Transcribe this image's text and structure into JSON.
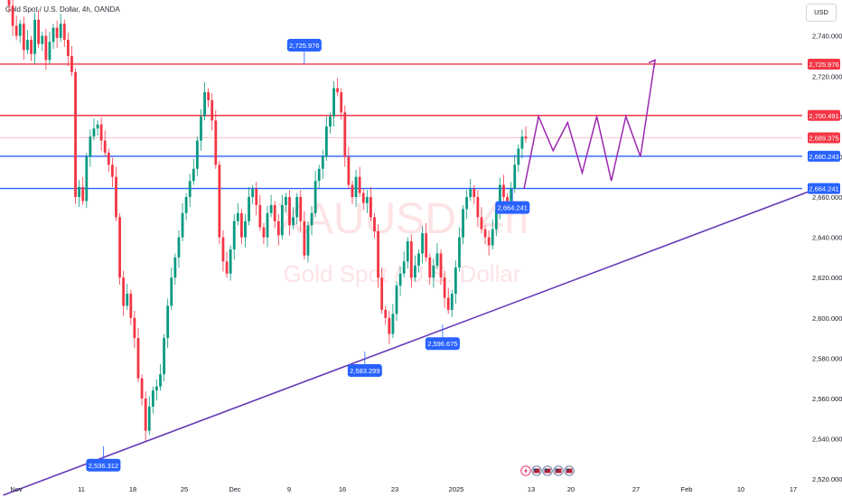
{
  "header": {
    "title": "Gold Spot / U.S. Dollar, 4h, OANDA"
  },
  "currency_button": "USD",
  "watermark": {
    "symbol": "XAUUSD, 4h",
    "name": "Gold Spot / U.S. Dollar"
  },
  "colors": {
    "red": "#f23645",
    "blue": "#2962ff",
    "purple": "#673ab7",
    "up": "#089981",
    "down": "#f23645",
    "label_blue": "#2962ff"
  },
  "events_icons": [
    "lightning-icon",
    "us-flag-icon",
    "us-flag-icon",
    "us-flag-icon",
    "us-flag-icon"
  ],
  "chart_data": {
    "type": "candlestick",
    "symbol": "XAUUSD",
    "timeframe": "4h",
    "y_axis": {
      "ticks": [
        "2,520.000",
        "2,540.000",
        "2,560.000",
        "2,580.000",
        "2,600.000",
        "2,620.000",
        "2,640.000",
        "2,660.000",
        "2,680.000",
        "2,700.000",
        "2,720.000",
        "2,740.000"
      ],
      "ylim": [
        2512,
        2756
      ]
    },
    "x_axis": {
      "ticks": [
        "Nov",
        "11",
        "18",
        "25",
        "Dec",
        "9",
        "16",
        "23",
        "2025",
        "13",
        "20",
        "27",
        "Feb",
        "10",
        "17"
      ]
    },
    "horizontal_levels": [
      {
        "value": 2725.976,
        "label": "2,725.976",
        "color": "red"
      },
      {
        "value": 2700.491,
        "label": "2,700.491",
        "color": "red"
      },
      {
        "value": 2689.375,
        "label": "2,689.375",
        "color": "red",
        "style": "faint"
      },
      {
        "value": 2680.243,
        "label": "2,680.243",
        "color": "blue"
      },
      {
        "value": 2664.241,
        "label": "2,664.241",
        "color": "blue"
      }
    ],
    "point_labels": [
      {
        "label": "2,725.976",
        "value": 2725.976,
        "date": "Dec 11"
      },
      {
        "label": "2,664.241",
        "value": 2664.241,
        "date": "Jan 10"
      },
      {
        "label": "2,583.299",
        "value": 2583.299,
        "date": "Dec 19"
      },
      {
        "label": "2,596.675",
        "value": 2596.675,
        "date": "Dec 30"
      },
      {
        "label": "2,536.312",
        "value": 2536.312,
        "date": "Nov 14"
      }
    ],
    "trendline": {
      "from": {
        "date": "Oct 30",
        "value": 2512
      },
      "to": {
        "date": "Feb 20",
        "value": 2664
      }
    },
    "projection_path": [
      2664,
      2700,
      2683,
      2697,
      2672,
      2700,
      2668,
      2700,
      2680,
      2728
    ],
    "closes": [
      2755,
      2745,
      2740,
      2746,
      2733,
      2738,
      2731,
      2748,
      2736,
      2740,
      2728,
      2737,
      2744,
      2739,
      2746,
      2738,
      2730,
      2722,
      2660,
      2665,
      2658,
      2680,
      2690,
      2694,
      2696,
      2688,
      2682,
      2676,
      2670,
      2650,
      2620,
      2606,
      2612,
      2600,
      2590,
      2570,
      2560,
      2544,
      2556,
      2564,
      2566,
      2572,
      2590,
      2606,
      2620,
      2630,
      2640,
      2652,
      2660,
      2668,
      2674,
      2688,
      2700,
      2712,
      2708,
      2698,
      2676,
      2640,
      2628,
      2622,
      2634,
      2648,
      2652,
      2640,
      2648,
      2660,
      2664,
      2656,
      2645,
      2640,
      2652,
      2656,
      2648,
      2641,
      2656,
      2660,
      2646,
      2650,
      2660,
      2648,
      2631,
      2646,
      2652,
      2668,
      2674,
      2680,
      2695,
      2700,
      2714,
      2712,
      2702,
      2680,
      2666,
      2660,
      2670,
      2662,
      2657,
      2660,
      2650,
      2643,
      2620,
      2604,
      2600,
      2592,
      2602,
      2616,
      2622,
      2628,
      2638,
      2620,
      2626,
      2632,
      2642,
      2630,
      2620,
      2626,
      2632,
      2620,
      2610,
      2604,
      2612,
      2625,
      2640,
      2654,
      2660,
      2664,
      2660,
      2650,
      2644,
      2640,
      2636,
      2644,
      2654,
      2666,
      2660,
      2658,
      2664,
      2676,
      2684,
      2690,
      2689
    ]
  }
}
